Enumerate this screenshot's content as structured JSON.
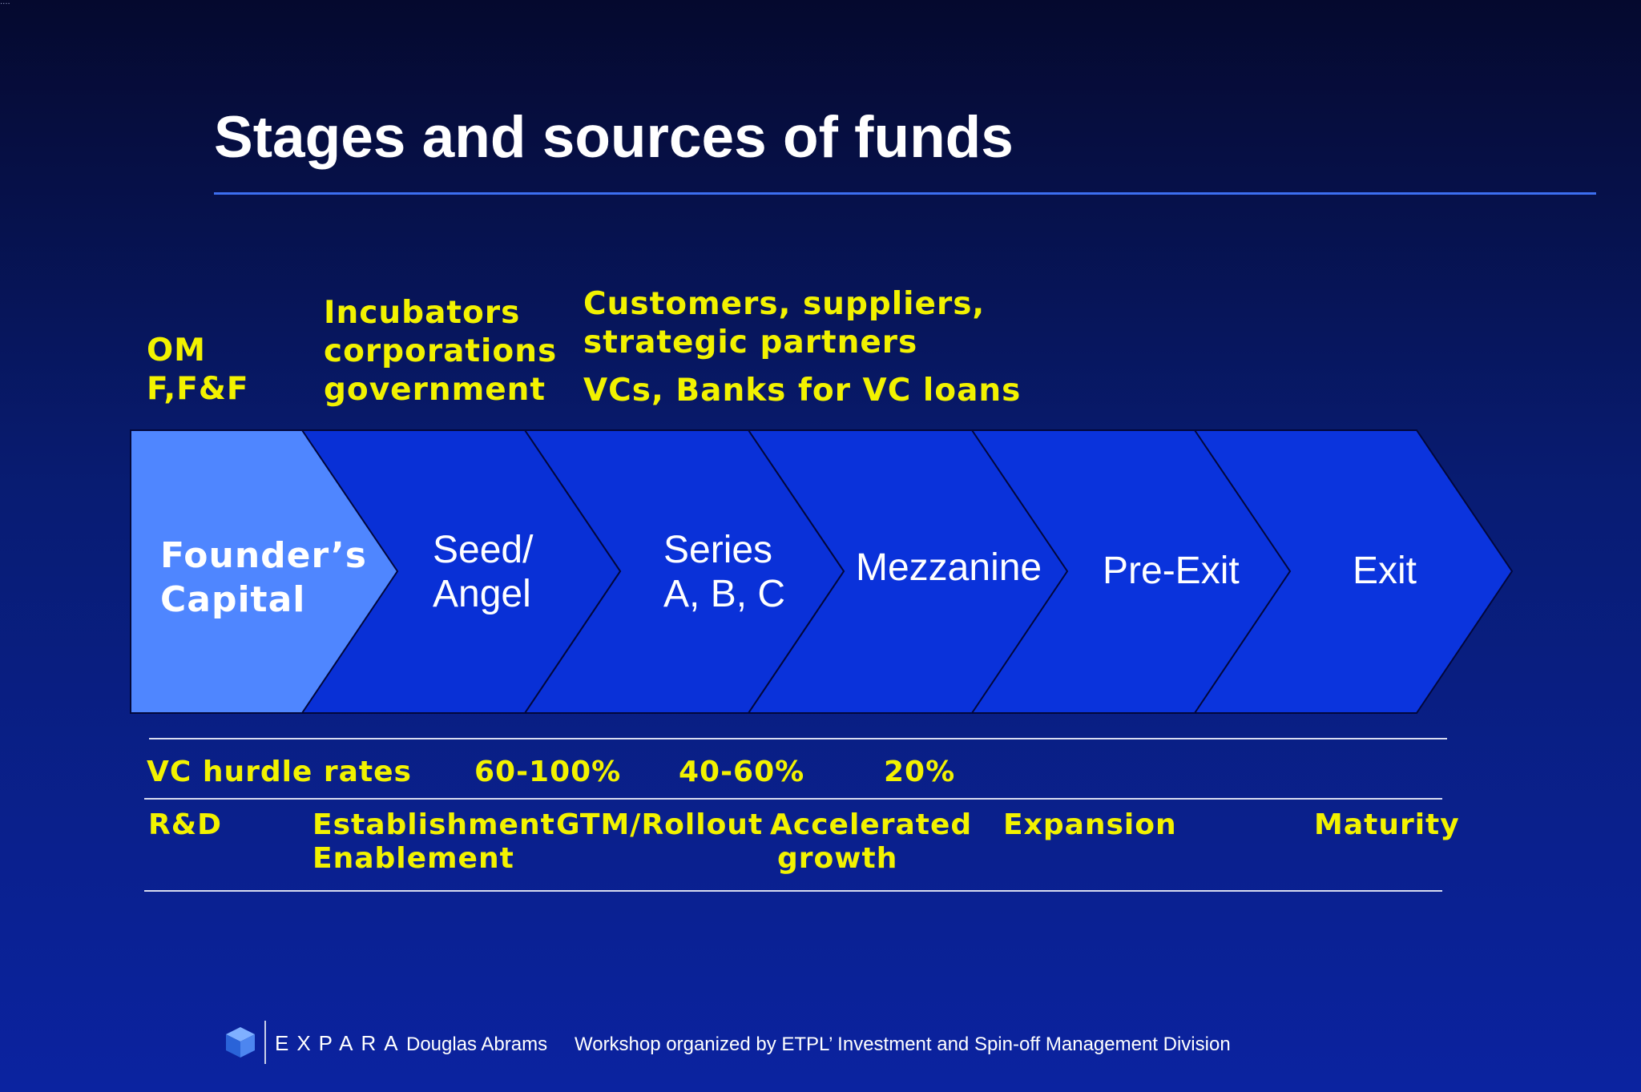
{
  "corner_mark": "····",
  "title": "Stages and sources of funds",
  "sources": {
    "col1": [
      "OM",
      "F,F&F"
    ],
    "col2": [
      "Incubators",
      "corporations",
      "government"
    ],
    "col3": [
      "Customers, suppliers,",
      "strategic partners",
      "VCs, Banks for VC loans"
    ]
  },
  "stages": [
    {
      "line1": "Founder’s",
      "line2": "Capital"
    },
    {
      "line1": "Seed/",
      "line2": "Angel"
    },
    {
      "line1": "Series",
      "line2": "A, B, C"
    },
    {
      "line1": "Mezzanine"
    },
    {
      "line1": "Pre-Exit"
    },
    {
      "line1": "Exit"
    }
  ],
  "hurdle": {
    "label": "VC hurdle rates",
    "rates": [
      "60-100%",
      "40-60%",
      "20%"
    ]
  },
  "phases": {
    "rd": "R&D",
    "establishment": [
      "Establishment",
      "Enablement"
    ],
    "gtm": "GTM/Rollout",
    "accelerated": [
      "Accelerated",
      "growth"
    ],
    "expansion": "Expansion",
    "maturity": "Maturity"
  },
  "footer": {
    "brand": "EXPARA",
    "author": "Douglas Abrams",
    "workshop": "Workshop organized by ETPL’ Investment and Spin-off Management Division"
  },
  "colors": {
    "background_top": "#05092e",
    "background_bottom": "#0b23a0",
    "first_chevron": "#4f86ff",
    "chevrons": "#0a32db",
    "source_text": "#f2f200",
    "title_rule": "#3d6ff0"
  },
  "icons": [
    "cube-logo-icon"
  ]
}
